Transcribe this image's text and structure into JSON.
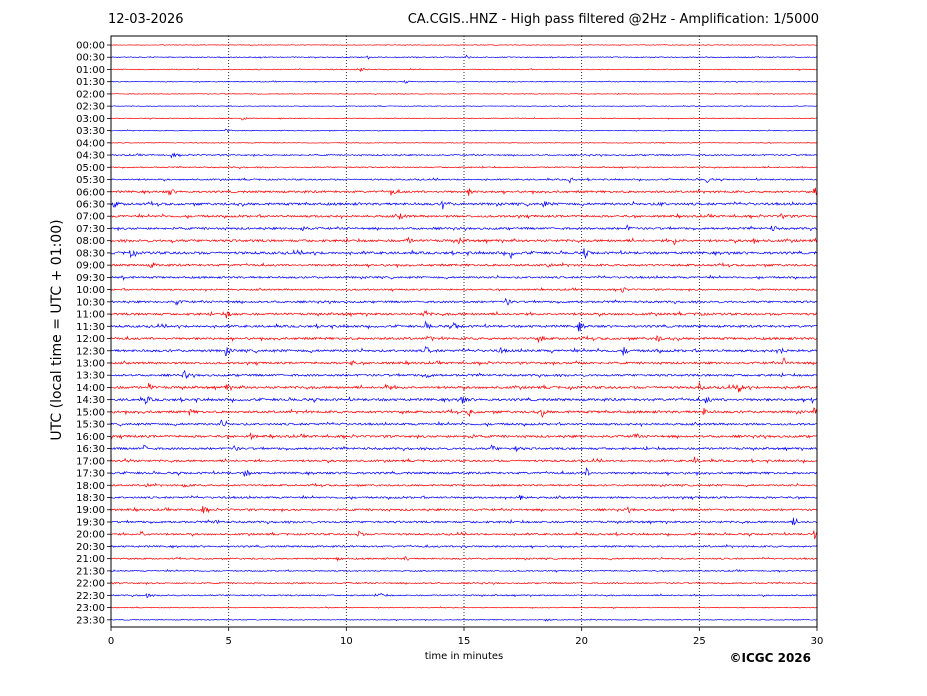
{
  "header": {
    "date": "12-03-2026",
    "title": "CA.CGIS..HNZ - High pass filtered @2Hz - Amplification: 1/5000"
  },
  "footer": {
    "copyright": "©ICGC 2026"
  },
  "chart_data": {
    "type": "line",
    "subtype": "helicorder",
    "xlabel": "time in minutes",
    "ylabel": "UTC (local time = UTC + 01:00)",
    "xlim": [
      0,
      30
    ],
    "xticks": [
      0,
      5,
      10,
      15,
      20,
      25,
      30
    ],
    "vertical_gridlines_at": [
      5,
      10,
      15,
      20,
      25
    ],
    "grid": "vertical dotted",
    "rows": [
      "00:00",
      "00:30",
      "01:00",
      "01:30",
      "02:00",
      "02:30",
      "03:00",
      "03:30",
      "04:00",
      "04:30",
      "05:00",
      "05:30",
      "06:00",
      "06:30",
      "07:00",
      "07:30",
      "08:00",
      "08:30",
      "09:00",
      "09:30",
      "10:00",
      "10:30",
      "11:00",
      "11:30",
      "12:00",
      "12:30",
      "13:00",
      "13:30",
      "14:00",
      "14:30",
      "15:00",
      "15:30",
      "16:00",
      "16:30",
      "17:00",
      "17:30",
      "18:00",
      "18:30",
      "19:00",
      "19:30",
      "20:00",
      "20:30",
      "21:00",
      "21:30",
      "22:00",
      "22:30",
      "23:00",
      "23:30"
    ],
    "trace_colors": [
      "#ff0000",
      "#0000ff"
    ],
    "activity_level": [
      0.05,
      0.15,
      0.15,
      0.1,
      0.05,
      0.05,
      0.1,
      0.1,
      0.05,
      0.3,
      0.25,
      0.35,
      0.6,
      0.7,
      0.6,
      0.6,
      0.7,
      0.75,
      0.6,
      0.5,
      0.4,
      0.55,
      0.65,
      0.65,
      0.65,
      0.7,
      0.6,
      0.6,
      0.7,
      0.75,
      0.7,
      0.6,
      0.65,
      0.6,
      0.55,
      0.6,
      0.45,
      0.5,
      0.55,
      0.55,
      0.5,
      0.45,
      0.35,
      0.25,
      0.3,
      0.3,
      0.1,
      0.1
    ],
    "events": [
      {
        "row": "00:30",
        "minute": 10.9,
        "amp": 0.3
      },
      {
        "row": "00:30",
        "minute": 15.1,
        "amp": 0.3
      },
      {
        "row": "01:00",
        "minute": 10.6,
        "amp": 0.35
      },
      {
        "row": "01:30",
        "minute": 12.5,
        "amp": 0.3
      },
      {
        "row": "03:00",
        "minute": 5.6,
        "amp": 0.3
      },
      {
        "row": "03:30",
        "minute": 4.9,
        "amp": 0.3
      },
      {
        "row": "04:30",
        "minute": 2.6,
        "amp": 0.4
      },
      {
        "row": "05:30",
        "minute": 19.5,
        "amp": 0.4
      },
      {
        "row": "05:30",
        "minute": 25.3,
        "amp": 0.7
      },
      {
        "row": "06:00",
        "minute": 2.5,
        "amp": 0.6
      },
      {
        "row": "06:00",
        "minute": 11.9,
        "amp": 0.6
      },
      {
        "row": "06:00",
        "minute": 15.2,
        "amp": 0.5
      },
      {
        "row": "06:00",
        "minute": 29.9,
        "amp": 0.6
      },
      {
        "row": "06:30",
        "minute": 0.1,
        "amp": 0.6
      },
      {
        "row": "06:30",
        "minute": 14.1,
        "amp": 0.7
      },
      {
        "row": "06:30",
        "minute": 18.4,
        "amp": 0.45
      },
      {
        "row": "06:30",
        "minute": 23.3,
        "amp": 0.4
      },
      {
        "row": "07:00",
        "minute": 12.3,
        "amp": 0.45
      },
      {
        "row": "07:00",
        "minute": 28.5,
        "amp": 0.5
      },
      {
        "row": "07:30",
        "minute": 8.1,
        "amp": 0.5
      },
      {
        "row": "07:30",
        "minute": 21.9,
        "amp": 0.45
      },
      {
        "row": "07:30",
        "minute": 28.1,
        "amp": 0.45
      },
      {
        "row": "08:00",
        "minute": 12.6,
        "amp": 0.5
      },
      {
        "row": "08:00",
        "minute": 14.8,
        "amp": 0.55
      },
      {
        "row": "08:00",
        "minute": 23.9,
        "amp": 0.7
      },
      {
        "row": "08:00",
        "minute": 27.3,
        "amp": 0.5
      },
      {
        "row": "08:30",
        "minute": 0.8,
        "amp": 0.7
      },
      {
        "row": "08:30",
        "minute": 17.0,
        "amp": 0.65
      },
      {
        "row": "08:30",
        "minute": 20.1,
        "amp": 0.65
      },
      {
        "row": "09:00",
        "minute": 1.7,
        "amp": 0.55
      },
      {
        "row": "09:00",
        "minute": 18.6,
        "amp": 0.45
      },
      {
        "row": "09:30",
        "minute": 0.5,
        "amp": 0.4
      },
      {
        "row": "10:00",
        "minute": 21.7,
        "amp": 0.45
      },
      {
        "row": "10:30",
        "minute": 2.8,
        "amp": 0.45
      },
      {
        "row": "10:30",
        "minute": 16.8,
        "amp": 0.6
      },
      {
        "row": "11:00",
        "minute": 4.9,
        "amp": 0.5
      },
      {
        "row": "11:00",
        "minute": 13.3,
        "amp": 0.7
      },
      {
        "row": "11:00",
        "minute": 24.9,
        "amp": 0.5
      },
      {
        "row": "11:30",
        "minute": 13.4,
        "amp": 0.6
      },
      {
        "row": "11:30",
        "minute": 14.6,
        "amp": 0.55
      },
      {
        "row": "11:30",
        "minute": 19.9,
        "amp": 0.75
      },
      {
        "row": "12:00",
        "minute": 13.5,
        "amp": 0.5
      },
      {
        "row": "12:00",
        "minute": 18.2,
        "amp": 0.55
      },
      {
        "row": "12:00",
        "minute": 23.2,
        "amp": 0.5
      },
      {
        "row": "12:30",
        "minute": 4.9,
        "amp": 0.6
      },
      {
        "row": "12:30",
        "minute": 13.4,
        "amp": 0.6
      },
      {
        "row": "12:30",
        "minute": 16.5,
        "amp": 0.55
      },
      {
        "row": "12:30",
        "minute": 21.8,
        "amp": 0.55
      },
      {
        "row": "12:30",
        "minute": 28.4,
        "amp": 0.7
      },
      {
        "row": "13:00",
        "minute": 10.2,
        "amp": 0.45
      },
      {
        "row": "13:00",
        "minute": 19.8,
        "amp": 0.5
      },
      {
        "row": "13:00",
        "minute": 28.6,
        "amp": 0.6
      },
      {
        "row": "13:30",
        "minute": 3.1,
        "amp": 0.7
      },
      {
        "row": "13:30",
        "minute": 13.4,
        "amp": 0.55
      },
      {
        "row": "14:00",
        "minute": 1.6,
        "amp": 0.5
      },
      {
        "row": "14:00",
        "minute": 4.9,
        "amp": 0.5
      },
      {
        "row": "14:00",
        "minute": 11.7,
        "amp": 0.5
      },
      {
        "row": "14:00",
        "minute": 25.0,
        "amp": 0.55
      },
      {
        "row": "14:00",
        "minute": 26.7,
        "amp": 0.9
      },
      {
        "row": "14:30",
        "minute": 1.5,
        "amp": 0.6
      },
      {
        "row": "14:30",
        "minute": 14.9,
        "amp": 0.6
      },
      {
        "row": "14:30",
        "minute": 25.3,
        "amp": 0.5
      },
      {
        "row": "14:30",
        "minute": 29.8,
        "amp": 0.65
      },
      {
        "row": "15:00",
        "minute": 3.3,
        "amp": 0.5
      },
      {
        "row": "15:00",
        "minute": 15.2,
        "amp": 0.6
      },
      {
        "row": "15:00",
        "minute": 18.3,
        "amp": 0.55
      },
      {
        "row": "15:00",
        "minute": 25.2,
        "amp": 0.5
      },
      {
        "row": "15:00",
        "minute": 29.9,
        "amp": 0.6
      },
      {
        "row": "15:30",
        "minute": 4.7,
        "amp": 0.6
      },
      {
        "row": "16:00",
        "minute": 5.9,
        "amp": 0.45
      },
      {
        "row": "16:00",
        "minute": 15.2,
        "amp": 0.5
      },
      {
        "row": "16:00",
        "minute": 22.2,
        "amp": 0.5
      },
      {
        "row": "16:30",
        "minute": 1.4,
        "amp": 0.55
      },
      {
        "row": "16:30",
        "minute": 5.2,
        "amp": 0.5
      },
      {
        "row": "16:30",
        "minute": 16.2,
        "amp": 0.5
      },
      {
        "row": "16:30",
        "minute": 17.2,
        "amp": 0.55
      },
      {
        "row": "17:00",
        "minute": 0.6,
        "amp": 0.5
      },
      {
        "row": "17:00",
        "minute": 24.8,
        "amp": 0.5
      },
      {
        "row": "17:30",
        "minute": 5.7,
        "amp": 0.55
      },
      {
        "row": "17:30",
        "minute": 20.2,
        "amp": 0.6
      },
      {
        "row": "18:00",
        "minute": 1.5,
        "amp": 0.4
      },
      {
        "row": "18:00",
        "minute": 3.1,
        "amp": 0.45
      },
      {
        "row": "18:30",
        "minute": 17.4,
        "amp": 0.55
      },
      {
        "row": "19:00",
        "minute": 3.9,
        "amp": 0.55
      },
      {
        "row": "19:00",
        "minute": 21.9,
        "amp": 0.55
      },
      {
        "row": "19:30",
        "minute": 4.4,
        "amp": 0.5
      },
      {
        "row": "19:30",
        "minute": 29.0,
        "amp": 0.5
      },
      {
        "row": "20:00",
        "minute": 1.3,
        "amp": 0.45
      },
      {
        "row": "20:00",
        "minute": 10.5,
        "amp": 0.5
      },
      {
        "row": "20:00",
        "minute": 29.9,
        "amp": 0.55
      },
      {
        "row": "20:30",
        "minute": 14.9,
        "amp": 0.45
      },
      {
        "row": "21:00",
        "minute": 9.6,
        "amp": 0.4
      },
      {
        "row": "21:00",
        "minute": 12.5,
        "amp": 0.35
      },
      {
        "row": "22:30",
        "minute": 1.5,
        "amp": 0.35
      },
      {
        "row": "22:30",
        "minute": 11.4,
        "amp": 0.55
      },
      {
        "row": "23:30",
        "minute": 18.5,
        "amp": 0.25
      }
    ]
  }
}
